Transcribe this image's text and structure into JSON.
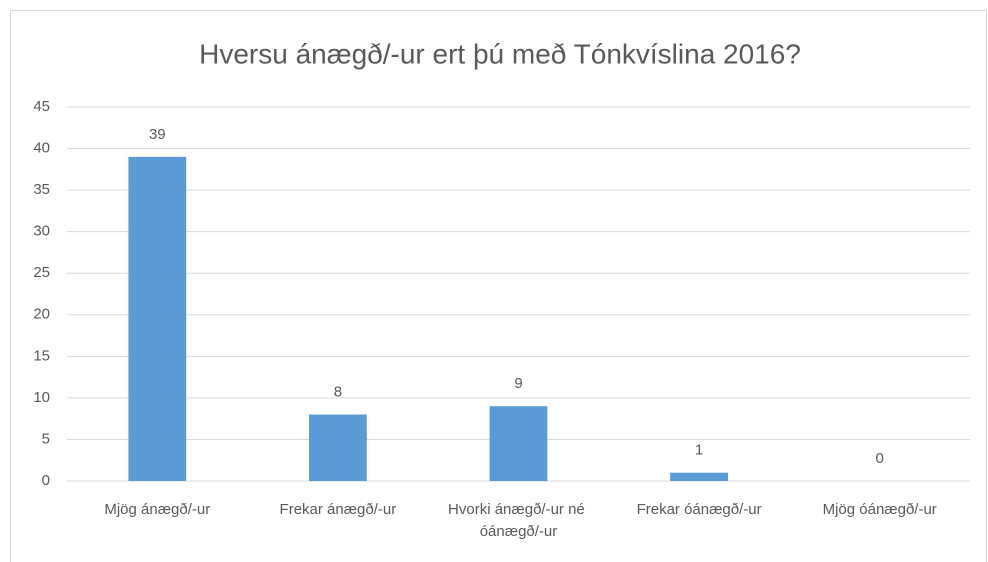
{
  "chart_data": {
    "type": "bar",
    "title": "Hversu ánægð/-ur ert þú með Tónkvíslina 2016?",
    "categories": [
      "Mjög ánægð/-ur",
      "Frekar ánægð/-ur",
      "Hvorki ánægð/-ur né óánægð/-ur",
      "Frekar óánægð/-ur",
      "Mjög óánægð/-ur"
    ],
    "values": [
      39,
      8,
      9,
      1,
      0
    ],
    "color": "#5b9bd5",
    "ylim": [
      0,
      45
    ],
    "yticks": [
      0,
      5,
      10,
      15,
      20,
      25,
      30,
      35,
      40,
      45
    ],
    "grid": true
  }
}
